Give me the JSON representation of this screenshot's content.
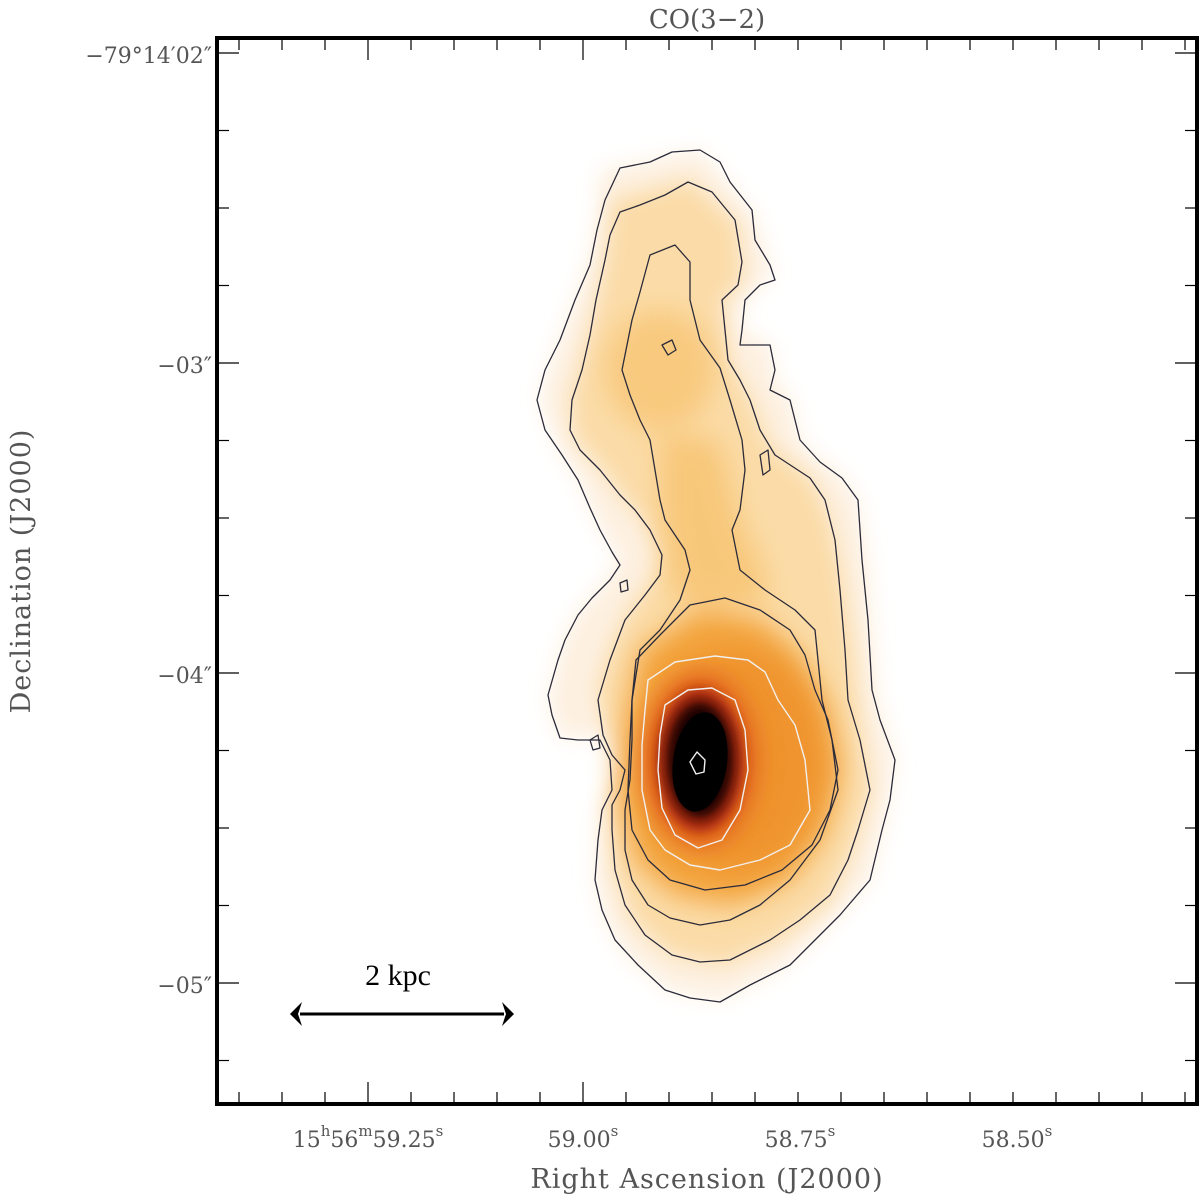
{
  "chart_data": {
    "type": "heatmap",
    "title": "CO(3−2)",
    "xlabel": "Right Ascension (J2000)",
    "ylabel": "Declination (J2000)",
    "x_ticks": [
      {
        "h": "15",
        "m": "56",
        "s": "59.25",
        "text": "15h56m59.25s",
        "value_s": 59.25
      },
      {
        "s": "59.00",
        "text": "59.00s",
        "value_s": 59.0
      },
      {
        "s": "58.75",
        "text": "58.75s",
        "value_s": 58.75
      },
      {
        "s": "58.50",
        "text": "58.50s",
        "value_s": 58.5
      }
    ],
    "y_ticks": [
      {
        "text": "−79°14′02″",
        "value_arcsec": 2
      },
      {
        "text": "−03″",
        "value_arcsec": 3
      },
      {
        "text": "−04″",
        "value_arcsec": 4
      },
      {
        "text": "−05″",
        "value_arcsec": 5
      }
    ],
    "x_range_s": [
      59.35,
      58.4
    ],
    "y_range_arcsec": [
      2.0,
      5.4
    ],
    "colormap": [
      "#ffffff",
      "#fdeed6",
      "#f9c97a",
      "#f4a53c",
      "#e8701a",
      "#b92a0c",
      "#2a0a06",
      "#000000"
    ],
    "contours_dark": "#2b2b3a",
    "contours_light": "#f2f0ee",
    "peak": {
      "ra_s": 58.87,
      "dec_arcsec": 4.28
    },
    "scale_bar": {
      "label": "2 kpc"
    },
    "grid": false
  }
}
